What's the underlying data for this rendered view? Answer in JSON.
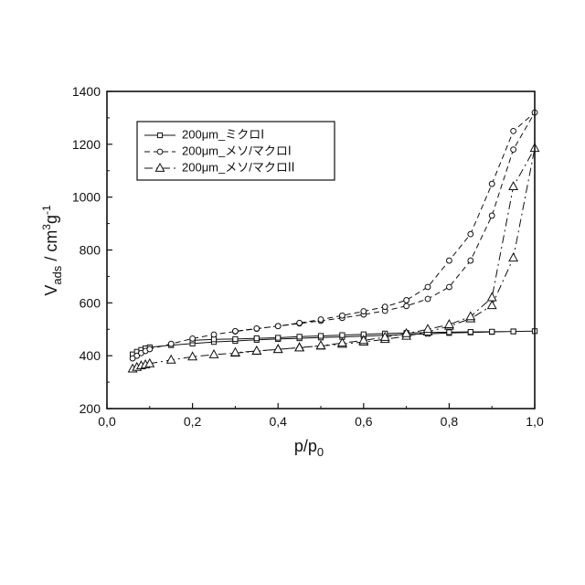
{
  "chart_data": {
    "type": "scatter",
    "xlabel": "p/p",
    "xlabel_sub": "0",
    "ylabel_base": "V",
    "ylabel_sub": "ads",
    "ylabel_mid": " / cm",
    "ylabel_sup1": "3",
    "ylabel_g": "g",
    "ylabel_sup2": "-1",
    "xlim": [
      0.0,
      1.0
    ],
    "ylim": [
      200,
      1400
    ],
    "x_ticks": [
      0.0,
      0.2,
      0.4,
      0.6,
      0.8,
      1.0
    ],
    "x_tick_labels": [
      "0,0",
      "0,2",
      "0,4",
      "0,6",
      "0,8",
      "1,0"
    ],
    "y_ticks": [
      200,
      400,
      600,
      800,
      1000,
      1200,
      1400
    ],
    "y_tick_labels": [
      "200",
      "400",
      "600",
      "800",
      "1000",
      "1200",
      "1400"
    ],
    "grid": false,
    "legend_position": "top-left",
    "series": [
      {
        "name": "200μm_ミクロⅠ",
        "marker": "square",
        "line": "solid",
        "x": [
          0.06,
          0.07,
          0.08,
          0.09,
          0.1,
          0.15,
          0.2,
          0.25,
          0.3,
          0.35,
          0.4,
          0.45,
          0.5,
          0.55,
          0.6,
          0.65,
          0.7,
          0.75,
          0.8,
          0.85,
          0.9,
          0.95,
          1.0,
          0.95,
          0.9,
          0.85,
          0.8,
          0.75,
          0.7,
          0.65,
          0.6,
          0.55,
          0.5,
          0.45,
          0.4,
          0.35,
          0.3,
          0.25,
          0.2
        ],
        "y": [
          405,
          415,
          422,
          428,
          432,
          440,
          446,
          452,
          456,
          460,
          463,
          466,
          469,
          471,
          474,
          477,
          480,
          483,
          486,
          488,
          490,
          492,
          493,
          492,
          491,
          490,
          489,
          488,
          486,
          484,
          481,
          478,
          475,
          472,
          468,
          466,
          463,
          462,
          458
        ]
      },
      {
        "name": "200μm_メソ/マクロⅠ",
        "marker": "circle",
        "line": "dashed",
        "x": [
          0.06,
          0.07,
          0.08,
          0.09,
          0.1,
          0.15,
          0.2,
          0.25,
          0.3,
          0.35,
          0.4,
          0.45,
          0.5,
          0.55,
          0.6,
          0.65,
          0.7,
          0.75,
          0.8,
          0.85,
          0.9,
          0.95,
          1.0,
          0.95,
          0.9,
          0.85,
          0.8,
          0.75,
          0.7,
          0.65,
          0.6,
          0.55,
          0.5,
          0.45,
          0.4,
          0.35,
          0.3
        ],
        "y": [
          390,
          400,
          410,
          418,
          425,
          445,
          465,
          480,
          492,
          502,
          512,
          522,
          532,
          543,
          556,
          570,
          588,
          615,
          660,
          760,
          930,
          1180,
          1320,
          1250,
          1050,
          860,
          760,
          660,
          610,
          585,
          568,
          552,
          537,
          524,
          512,
          503,
          493
        ]
      },
      {
        "name": "200μm_メソ/マクロⅠⅠ",
        "marker": "triangle",
        "line": "dash-dot",
        "x": [
          0.06,
          0.07,
          0.08,
          0.09,
          0.1,
          0.15,
          0.2,
          0.25,
          0.3,
          0.35,
          0.4,
          0.45,
          0.5,
          0.55,
          0.6,
          0.65,
          0.7,
          0.75,
          0.8,
          0.85,
          0.9,
          0.95,
          1.0,
          0.95,
          0.9,
          0.85,
          0.8,
          0.75,
          0.7,
          0.65,
          0.6,
          0.55,
          0.5,
          0.45,
          0.4,
          0.35,
          0.3
        ],
        "y": [
          350,
          356,
          362,
          366,
          370,
          384,
          396,
          404,
          410,
          417,
          424,
          431,
          437,
          444,
          452,
          462,
          474,
          490,
          512,
          540,
          590,
          770,
          1185,
          1040,
          620,
          548,
          518,
          500,
          484,
          470,
          458,
          448,
          438,
          430,
          424,
          418,
          412
        ]
      }
    ]
  }
}
